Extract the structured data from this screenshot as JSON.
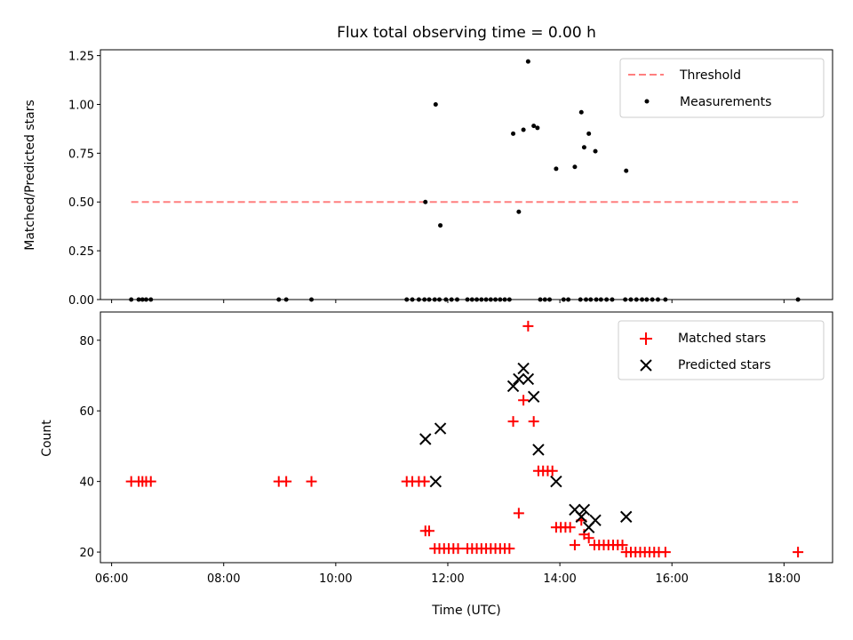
{
  "chart_data": [
    {
      "type": "scatter",
      "title": "Flux total observing time = 0.00 h",
      "xlabel": "",
      "ylabel": "Matched/Predicted stars",
      "ylim": [
        0,
        1.28
      ],
      "yticks": [
        "0.00",
        "0.25",
        "0.50",
        "0.75",
        "1.00",
        "1.25"
      ],
      "legend_position": "top-right",
      "threshold": {
        "name": "Threshold",
        "y": 0.5,
        "x_start": "06:21",
        "x_end": "18:15",
        "color": "#ff7f7f"
      },
      "series": [
        {
          "name": "Measurements",
          "color": "#000000",
          "x": [
            "06:21",
            "06:29",
            "06:33",
            "06:37",
            "06:42",
            "08:59",
            "09:07",
            "09:34",
            "11:16",
            "11:22",
            "11:29",
            "11:35",
            "11:40",
            "11:46",
            "11:51",
            "11:58",
            "12:04",
            "12:10",
            "12:21",
            "12:26",
            "12:31",
            "12:36",
            "12:41",
            "12:46",
            "12:51",
            "12:56",
            "13:01",
            "13:06",
            "13:39",
            "13:44",
            "13:49",
            "14:04",
            "14:09",
            "14:22",
            "14:28",
            "14:33",
            "14:39",
            "14:44",
            "14:50",
            "14:56",
            "15:10",
            "15:16",
            "15:22",
            "15:28",
            "15:33",
            "15:39",
            "15:45",
            "15:53",
            "18:15",
            "11:36",
            "11:47",
            "11:52",
            "13:10",
            "13:16",
            "13:21",
            "13:26",
            "13:32",
            "13:36",
            "13:56",
            "14:16",
            "14:23",
            "14:26",
            "14:31",
            "14:38",
            "15:11"
          ],
          "y": [
            0,
            0,
            0,
            0,
            0,
            0,
            0,
            0,
            0,
            0,
            0,
            0,
            0,
            0,
            0,
            0,
            0,
            0,
            0,
            0,
            0,
            0,
            0,
            0,
            0,
            0,
            0,
            0,
            0,
            0,
            0,
            0,
            0,
            0,
            0,
            0,
            0,
            0,
            0,
            0,
            0,
            0,
            0,
            0,
            0,
            0,
            0,
            0,
            0,
            0.5,
            1.0,
            0.38,
            0.85,
            0.45,
            0.87,
            1.22,
            0.89,
            0.88,
            0.67,
            0.68,
            0.96,
            0.78,
            0.85,
            0.76,
            0.66
          ]
        }
      ]
    },
    {
      "type": "scatter",
      "title": "",
      "xlabel": "Time (UTC)",
      "ylabel": "Count",
      "xlim": [
        "05:48",
        "18:52"
      ],
      "xticks": [
        "06:00",
        "08:00",
        "10:00",
        "12:00",
        "14:00",
        "16:00",
        "18:00"
      ],
      "ylim": [
        17,
        88
      ],
      "yticks": [
        "20",
        "40",
        "60",
        "80"
      ],
      "legend_position": "top-right",
      "series": [
        {
          "name": "Matched stars",
          "marker": "+",
          "color": "#ff0000",
          "x": [
            "06:21",
            "06:29",
            "06:33",
            "06:37",
            "06:42",
            "08:59",
            "09:07",
            "09:34",
            "11:16",
            "11:22",
            "11:29",
            "11:35",
            "11:36",
            "11:40",
            "11:46",
            "11:51",
            "11:56",
            "12:01",
            "12:06",
            "12:11",
            "12:21",
            "12:26",
            "12:31",
            "12:36",
            "12:41",
            "12:46",
            "12:51",
            "12:56",
            "13:01",
            "13:06",
            "13:10",
            "13:16",
            "13:21",
            "13:26",
            "13:32",
            "13:37",
            "13:42",
            "13:47",
            "13:52",
            "13:56",
            "14:01",
            "14:06",
            "14:11",
            "14:16",
            "14:23",
            "14:26",
            "14:31",
            "14:37",
            "14:42",
            "14:47",
            "14:52",
            "14:57",
            "15:02",
            "15:07",
            "15:11",
            "15:16",
            "15:21",
            "15:26",
            "15:31",
            "15:36",
            "15:41",
            "15:46",
            "15:53",
            "18:15"
          ],
          "y": [
            40,
            40,
            40,
            40,
            40,
            40,
            40,
            40,
            40,
            40,
            40,
            40,
            26,
            26,
            21,
            21,
            21,
            21,
            21,
            21,
            21,
            21,
            21,
            21,
            21,
            21,
            21,
            21,
            21,
            21,
            57,
            31,
            63,
            84,
            57,
            43,
            43,
            43,
            43,
            27,
            27,
            27,
            27,
            22,
            29,
            25,
            24,
            22,
            22,
            22,
            22,
            22,
            22,
            22,
            20,
            20,
            20,
            20,
            20,
            20,
            20,
            20,
            20,
            20
          ]
        },
        {
          "name": "Predicted stars",
          "marker": "x",
          "color": "#000000",
          "x": [
            "11:36",
            "11:47",
            "11:52",
            "13:10",
            "13:16",
            "13:21",
            "13:26",
            "13:32",
            "13:37",
            "13:56",
            "14:16",
            "14:23",
            "14:26",
            "14:31",
            "14:38",
            "15:11"
          ],
          "y": [
            52,
            40,
            55,
            67,
            69,
            72,
            69,
            64,
            49,
            40,
            32,
            30,
            32,
            27,
            29,
            30
          ]
        }
      ]
    }
  ]
}
